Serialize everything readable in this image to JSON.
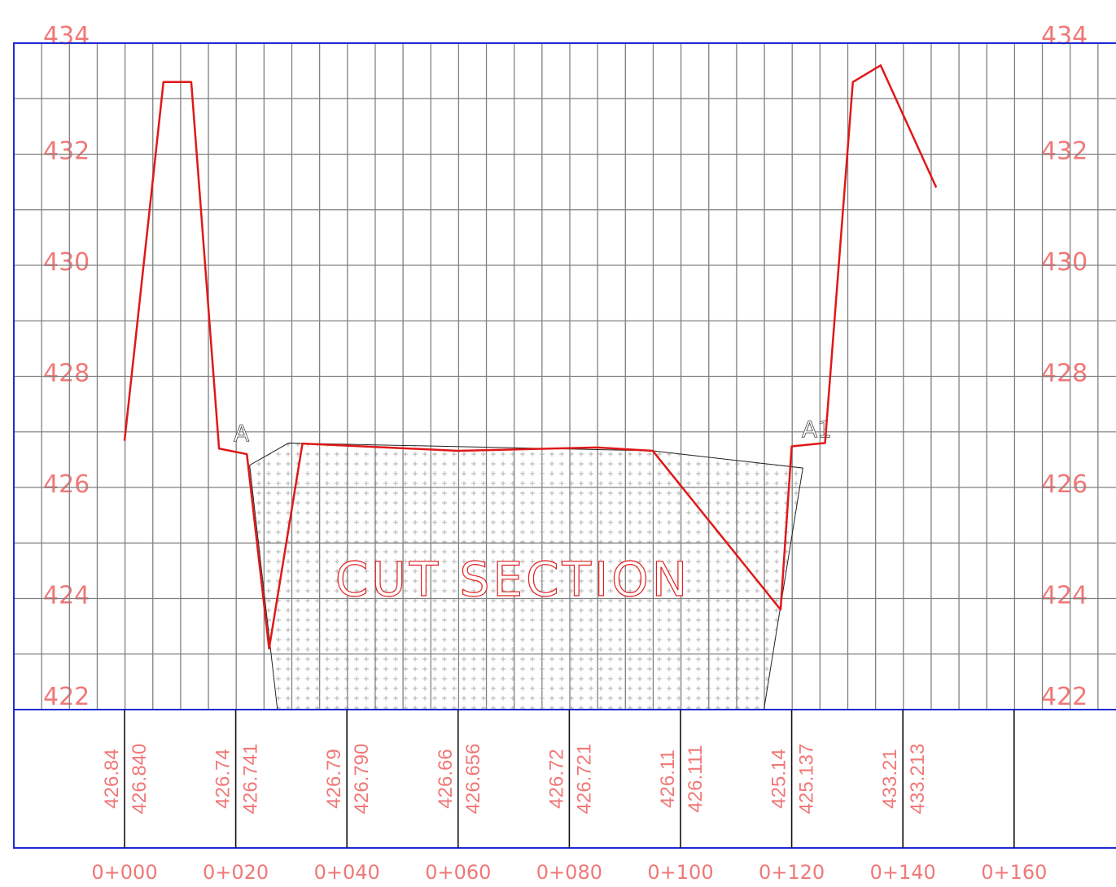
{
  "chart_data": {
    "type": "line",
    "title": "",
    "annotation": "CUT SECTION",
    "points_labels": [
      "A",
      "A1"
    ],
    "elevation_ticks": [
      "434",
      "432",
      "430",
      "428",
      "426",
      "424",
      "422"
    ],
    "chainage_ticks": [
      "0+000",
      "0+020",
      "0+040",
      "0+060",
      "0+080",
      "0+100",
      "0+120",
      "0+140",
      "0+160"
    ],
    "ylim": [
      422,
      434
    ],
    "xlim": [
      0,
      160
    ],
    "existing_elevation_labels": [
      "426.84",
      "426.74",
      "426.79",
      "426.66",
      "426.72",
      "426.11",
      "425.14",
      "433.21"
    ],
    "design_elevation_labels": [
      "426.840",
      "426.741",
      "426.790",
      "426.656",
      "426.721",
      "426.111",
      "425.137",
      "433.213"
    ],
    "ground_profile": {
      "name": "",
      "x": [
        0,
        7,
        12,
        17,
        22,
        26,
        32,
        60,
        85,
        95,
        118,
        120,
        126,
        131,
        136,
        146
      ],
      "y": [
        426.84,
        433.3,
        433.3,
        426.7,
        426.6,
        423.1,
        426.79,
        426.66,
        426.72,
        426.66,
        423.8,
        426.74,
        426.8,
        433.3,
        433.6,
        431.4
      ]
    },
    "template_outline": {
      "x": [
        22.5,
        29.5,
        95,
        122,
        115,
        27.5
      ],
      "y": [
        426.4,
        426.8,
        426.66,
        426.35,
        422,
        422
      ]
    },
    "colors": {
      "ground": "#e01818",
      "grid": "#808080",
      "frame": "#1f2bd0",
      "label": "#f07878"
    }
  }
}
